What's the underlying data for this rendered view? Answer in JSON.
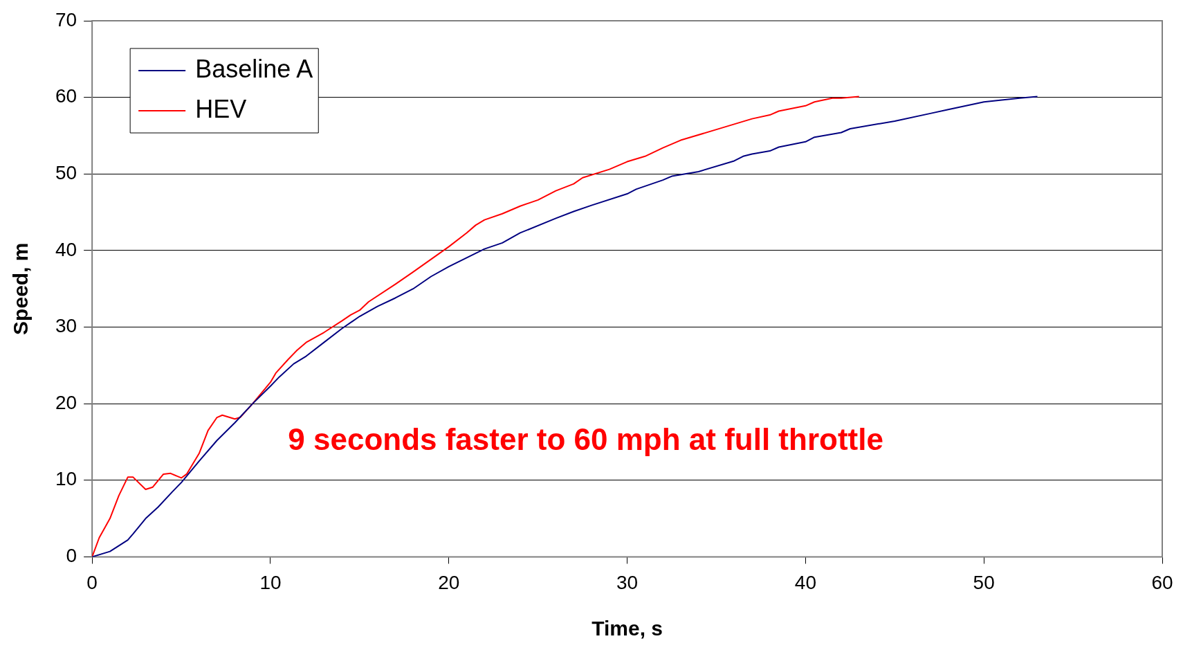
{
  "chart_data": {
    "type": "line",
    "xlabel": "Time, s",
    "ylabel": "Speed, m",
    "xlim": [
      0,
      60
    ],
    "xticks": [
      0,
      10,
      20,
      30,
      40,
      50,
      60
    ],
    "ylim": [
      0,
      70
    ],
    "yticks": [
      0,
      10,
      20,
      30,
      40,
      50,
      60,
      70
    ],
    "grid": "y",
    "legend": "top left",
    "marker": "none",
    "line_style": "solid",
    "annotations": [
      "9 seconds faster to 60 mph at full throttle"
    ],
    "series": [
      {
        "name": "Baseline A",
        "color": "#000080",
        "x": [
          0,
          1,
          2,
          2.3,
          3,
          3.7,
          4.5,
          5,
          6,
          7,
          8,
          9,
          10,
          10.5,
          11.3,
          12,
          13,
          14,
          15,
          16,
          17,
          18,
          19,
          20,
          22,
          23,
          24,
          26,
          27,
          28,
          30,
          30.5,
          32,
          32.5,
          34,
          36,
          36.5,
          37,
          38,
          38.5,
          40,
          40.5,
          42,
          42.5,
          45,
          47,
          48,
          50,
          52,
          53
        ],
        "values": [
          0,
          0.7,
          2.2,
          3,
          5,
          6.5,
          8.5,
          9.7,
          12.5,
          15.2,
          17.5,
          20,
          22.3,
          23.5,
          25.2,
          26.2,
          28,
          29.8,
          31.4,
          32.7,
          33.8,
          35,
          36.6,
          37.9,
          40.2,
          41,
          42.3,
          44.2,
          45.1,
          45.9,
          47.4,
          48,
          49.2,
          49.7,
          50.3,
          51.7,
          52.3,
          52.6,
          53,
          53.5,
          54.2,
          54.8,
          55.4,
          55.9,
          56.9,
          57.9,
          58.4,
          59.4,
          59.9,
          60.1
        ]
      },
      {
        "name": "HEV",
        "color": "#ff0000",
        "x": [
          0,
          0.4,
          1,
          1.5,
          2,
          2.3,
          3,
          3.4,
          4,
          4.4,
          5,
          5.3,
          6,
          6.5,
          7,
          7.3,
          8,
          8.3,
          9,
          10,
          10.3,
          11,
          11.5,
          12,
          13,
          14,
          14.5,
          15,
          15.5,
          17,
          18,
          20,
          21,
          21.5,
          22,
          23,
          24,
          25,
          26,
          27,
          27.5,
          29,
          30,
          31,
          32,
          33,
          35,
          37,
          38,
          38.5,
          40,
          40.5,
          41.5,
          42,
          43
        ],
        "values": [
          0,
          2.5,
          5,
          8,
          10.4,
          10.4,
          8.8,
          9.1,
          10.8,
          10.9,
          10.3,
          10.8,
          13.5,
          16.5,
          18.2,
          18.5,
          18,
          18.2,
          20,
          22.8,
          24,
          25.8,
          27,
          28,
          29.3,
          30.8,
          31.6,
          32.2,
          33.3,
          35.6,
          37.2,
          40.5,
          42.3,
          43.3,
          44,
          44.8,
          45.8,
          46.6,
          47.8,
          48.7,
          49.5,
          50.6,
          51.6,
          52.3,
          53.4,
          54.4,
          55.8,
          57.2,
          57.7,
          58.2,
          58.9,
          59.4,
          59.9,
          59.9,
          60.1
        ]
      }
    ]
  }
}
